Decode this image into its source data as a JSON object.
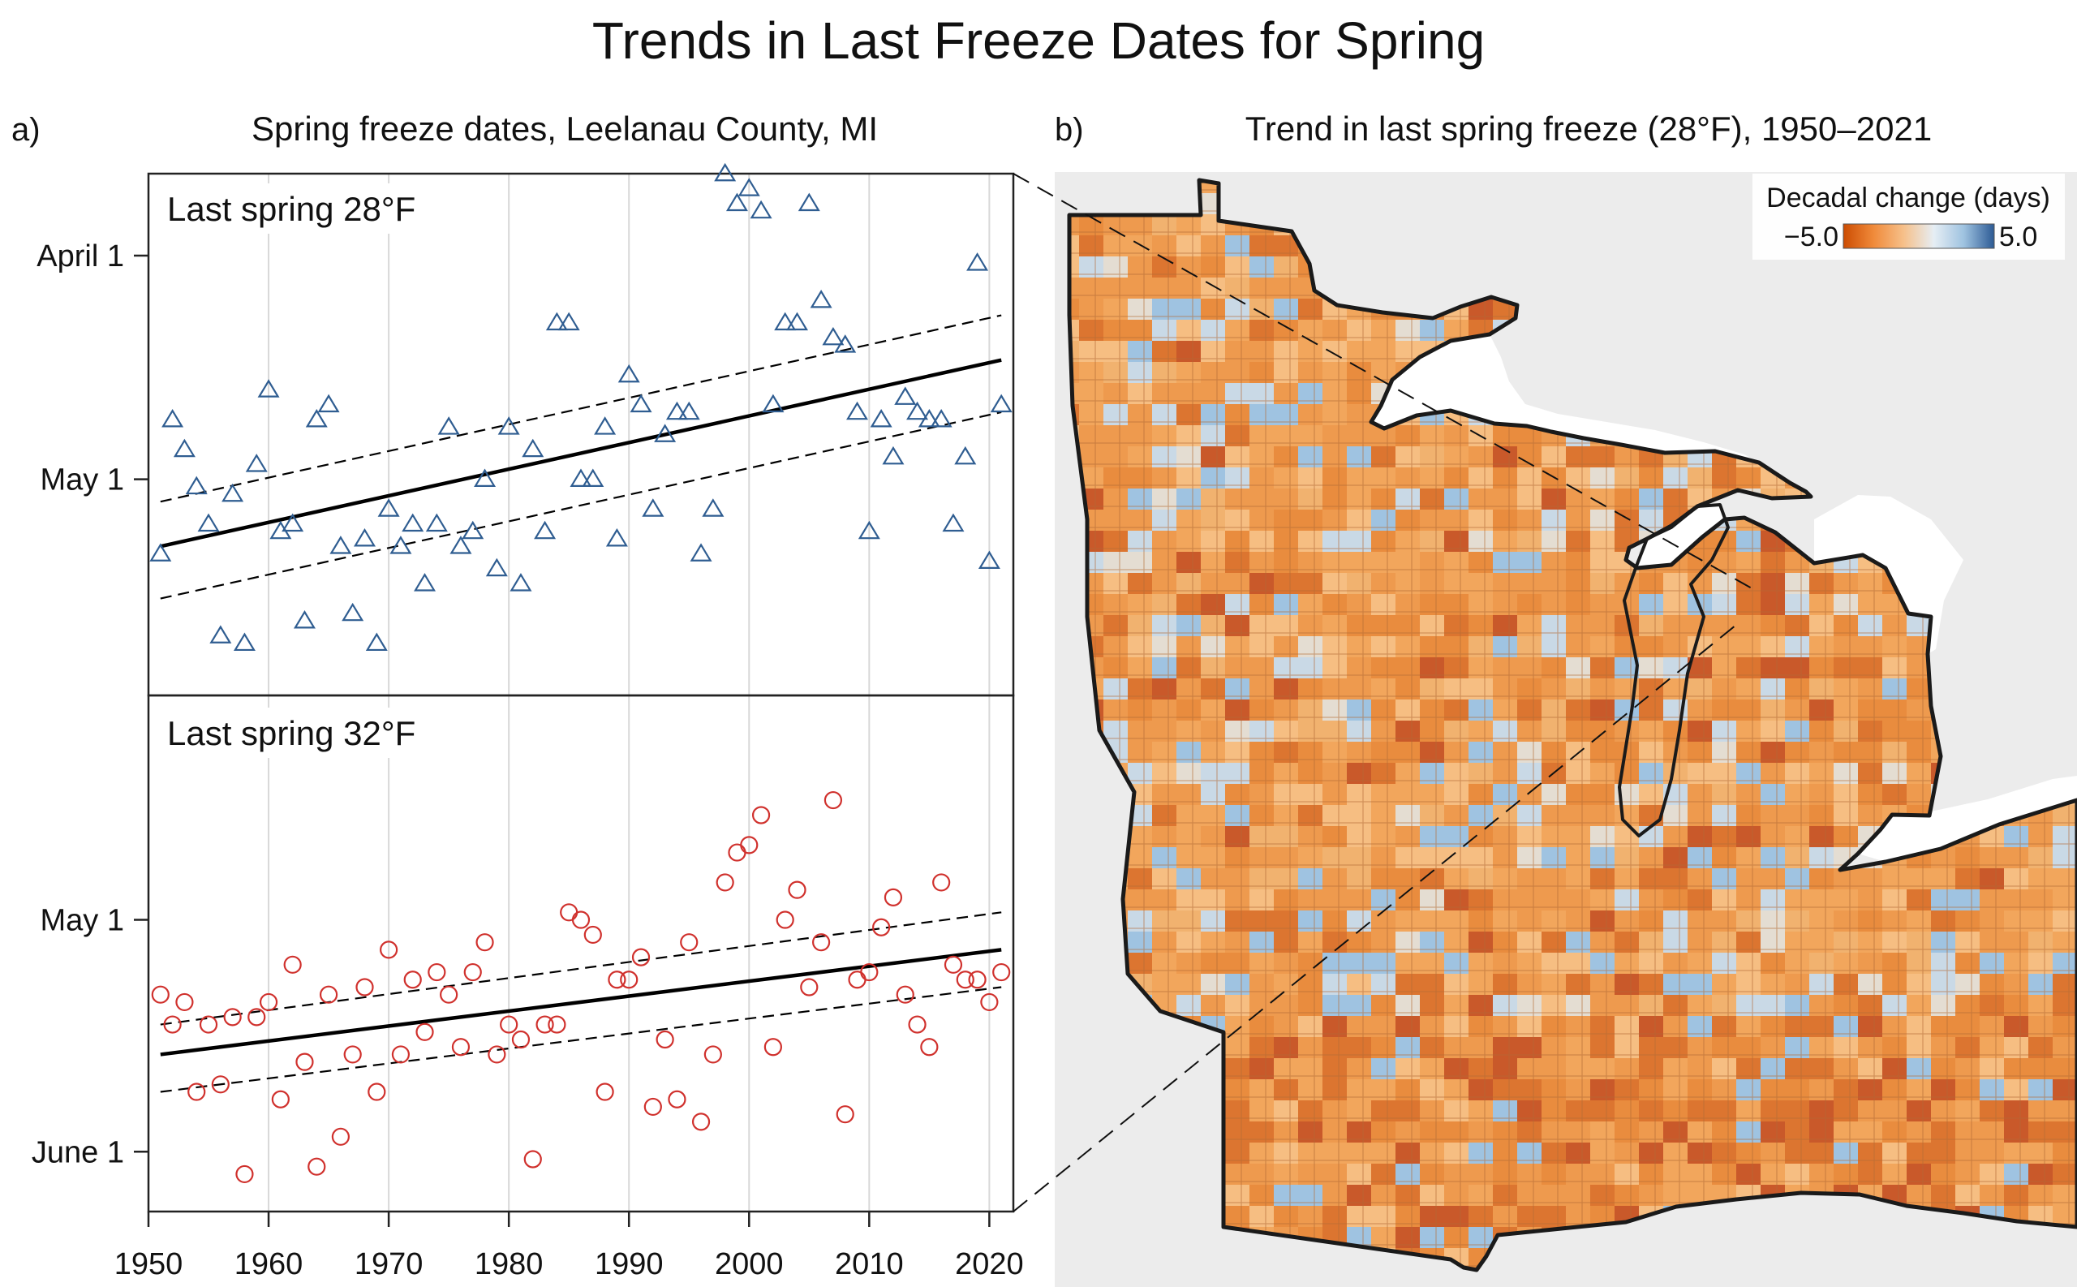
{
  "figure_title": "Trends in Last Freeze Dates for Spring",
  "chart_data": [
    {
      "type": "scatter",
      "panel": "a)",
      "title": "Spring freeze dates, Leelanau County, MI",
      "xlim": [
        1950,
        2022
      ],
      "x_ticks": [
        1950,
        1960,
        1970,
        1980,
        1990,
        2000,
        2010,
        2020
      ],
      "grid": "vertical",
      "subplots": [
        {
          "label": "Last spring 28°F",
          "marker": "triangle",
          "color": "#2f5d91",
          "ylim": [
            80,
            150
          ],
          "y_ticks": [
            {
              "label": "April 1",
              "value": 91
            },
            {
              "label": "May 1",
              "value": 121
            }
          ],
          "y_unit": "day of year",
          "points": [
            [
              1951,
              131
            ],
            [
              1952,
              113
            ],
            [
              1953,
              117
            ],
            [
              1954,
              122
            ],
            [
              1955,
              127
            ],
            [
              1956,
              142
            ],
            [
              1957,
              123
            ],
            [
              1958,
              143
            ],
            [
              1959,
              119
            ],
            [
              1960,
              109
            ],
            [
              1961,
              128
            ],
            [
              1962,
              127
            ],
            [
              1963,
              140
            ],
            [
              1964,
              113
            ],
            [
              1965,
              111
            ],
            [
              1966,
              130
            ],
            [
              1967,
              139
            ],
            [
              1968,
              129
            ],
            [
              1969,
              143
            ],
            [
              1970,
              125
            ],
            [
              1971,
              130
            ],
            [
              1972,
              127
            ],
            [
              1973,
              135
            ],
            [
              1974,
              127
            ],
            [
              1975,
              114
            ],
            [
              1976,
              130
            ],
            [
              1977,
              128
            ],
            [
              1978,
              121
            ],
            [
              1979,
              133
            ],
            [
              1980,
              114
            ],
            [
              1981,
              135
            ],
            [
              1982,
              117
            ],
            [
              1983,
              128
            ],
            [
              1984,
              100
            ],
            [
              1985,
              100
            ],
            [
              1986,
              121
            ],
            [
              1987,
              121
            ],
            [
              1988,
              114
            ],
            [
              1989,
              129
            ],
            [
              1990,
              107
            ],
            [
              1991,
              111
            ],
            [
              1992,
              125
            ],
            [
              1993,
              115
            ],
            [
              1994,
              112
            ],
            [
              1995,
              112
            ],
            [
              1996,
              131
            ],
            [
              1997,
              125
            ],
            [
              1998,
              80
            ],
            [
              1999,
              84
            ],
            [
              2000,
              82
            ],
            [
              2001,
              85
            ],
            [
              2002,
              111
            ],
            [
              2003,
              100
            ],
            [
              2004,
              100
            ],
            [
              2005,
              84
            ],
            [
              2006,
              97
            ],
            [
              2007,
              102
            ],
            [
              2008,
              103
            ],
            [
              2009,
              112
            ],
            [
              2010,
              128
            ],
            [
              2011,
              113
            ],
            [
              2012,
              118
            ],
            [
              2013,
              110
            ],
            [
              2014,
              112
            ],
            [
              2015,
              113
            ],
            [
              2016,
              113
            ],
            [
              2017,
              127
            ],
            [
              2018,
              118
            ],
            [
              2019,
              92
            ],
            [
              2020,
              132
            ],
            [
              2021,
              111
            ]
          ],
          "trend": {
            "x": [
              1951,
              2021
            ],
            "y": [
              130,
              105
            ]
          },
          "ci_upper": {
            "x": [
              1951,
              2021
            ],
            "y": [
              124,
              99
            ]
          },
          "ci_lower": {
            "x": [
              1951,
              2021
            ],
            "y": [
              137,
              112
            ]
          }
        },
        {
          "label": "Last spring 32°F",
          "marker": "circle",
          "color": "#d0312d",
          "ylim": [
            91,
            160
          ],
          "y_ticks": [
            {
              "label": "May 1",
              "value": 121
            },
            {
              "label": "June 1",
              "value": 152
            }
          ],
          "y_unit": "day of year",
          "points": [
            [
              1951,
              131
            ],
            [
              1952,
              135
            ],
            [
              1953,
              132
            ],
            [
              1954,
              144
            ],
            [
              1955,
              135
            ],
            [
              1956,
              143
            ],
            [
              1957,
              134
            ],
            [
              1958,
              155
            ],
            [
              1959,
              134
            ],
            [
              1960,
              132
            ],
            [
              1961,
              145
            ],
            [
              1962,
              127
            ],
            [
              1963,
              140
            ],
            [
              1964,
              154
            ],
            [
              1965,
              131
            ],
            [
              1966,
              150
            ],
            [
              1967,
              139
            ],
            [
              1968,
              130
            ],
            [
              1969,
              144
            ],
            [
              1970,
              125
            ],
            [
              1971,
              139
            ],
            [
              1972,
              129
            ],
            [
              1973,
              136
            ],
            [
              1974,
              128
            ],
            [
              1975,
              131
            ],
            [
              1976,
              138
            ],
            [
              1977,
              128
            ],
            [
              1978,
              124
            ],
            [
              1979,
              139
            ],
            [
              1980,
              135
            ],
            [
              1981,
              137
            ],
            [
              1982,
              153
            ],
            [
              1983,
              135
            ],
            [
              1984,
              135
            ],
            [
              1985,
              120
            ],
            [
              1986,
              121
            ],
            [
              1987,
              123
            ],
            [
              1988,
              144
            ],
            [
              1989,
              129
            ],
            [
              1990,
              129
            ],
            [
              1991,
              126
            ],
            [
              1992,
              146
            ],
            [
              1993,
              137
            ],
            [
              1994,
              145
            ],
            [
              1995,
              124
            ],
            [
              1996,
              148
            ],
            [
              1997,
              139
            ],
            [
              1998,
              116
            ],
            [
              1999,
              112
            ],
            [
              2000,
              111
            ],
            [
              2001,
              107
            ],
            [
              2002,
              138
            ],
            [
              2003,
              121
            ],
            [
              2004,
              117
            ],
            [
              2005,
              130
            ],
            [
              2006,
              124
            ],
            [
              2007,
              105
            ],
            [
              2008,
              147
            ],
            [
              2009,
              129
            ],
            [
              2010,
              128
            ],
            [
              2011,
              122
            ],
            [
              2012,
              118
            ],
            [
              2013,
              131
            ],
            [
              2014,
              135
            ],
            [
              2015,
              138
            ],
            [
              2016,
              116
            ],
            [
              2017,
              127
            ],
            [
              2018,
              129
            ],
            [
              2019,
              129
            ],
            [
              2020,
              132
            ],
            [
              2021,
              128
            ]
          ],
          "trend": {
            "x": [
              1951,
              2021
            ],
            "y": [
              139,
              125
            ]
          },
          "ci_upper": {
            "x": [
              1951,
              2021
            ],
            "y": [
              135,
              120
            ]
          },
          "ci_lower": {
            "x": [
              1951,
              2021
            ],
            "y": [
              144,
              130
            ]
          }
        }
      ]
    },
    {
      "type": "heatmap",
      "panel": "b)",
      "title": "Trend in last spring freeze (28°F), 1950–2021",
      "legend": {
        "title": "Decadal change (days)",
        "min_label": "−5.0",
        "max_label": "5.0",
        "min": -5.0,
        "max": 5.0,
        "colors": [
          "#cc4c02",
          "#f08a3a",
          "#f6c08a",
          "#e6eef4",
          "#9ec2e0",
          "#2c5a94"
        ],
        "placement": "top-right"
      }
    }
  ]
}
